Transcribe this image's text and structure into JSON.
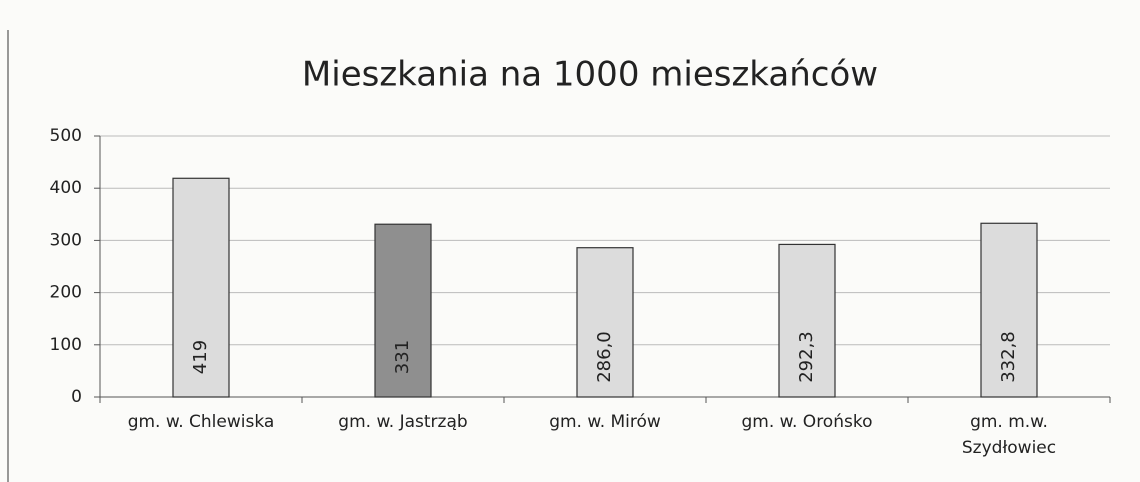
{
  "chart_data": {
    "type": "bar",
    "title": "Mieszkania na 1000 mieszkańców",
    "categories": [
      "gm. w. Chlewiska",
      "gm. w. Jastrząb",
      "gm. w. Mirów",
      "gm. w. Orońsko",
      "gm. m.w. Szydłowiec"
    ],
    "values": [
      419,
      331,
      286.0,
      292.3,
      332.8
    ],
    "value_labels": [
      "419",
      "331",
      "286,0",
      "292,3",
      "332,8"
    ],
    "colors": [
      "#dcdcdc",
      "#8f8f8f",
      "#dcdcdc",
      "#dcdcdc",
      "#dcdcdc"
    ],
    "ylim": [
      0,
      500
    ],
    "yticks": [
      0,
      100,
      200,
      300,
      400,
      500
    ],
    "grid": true
  }
}
